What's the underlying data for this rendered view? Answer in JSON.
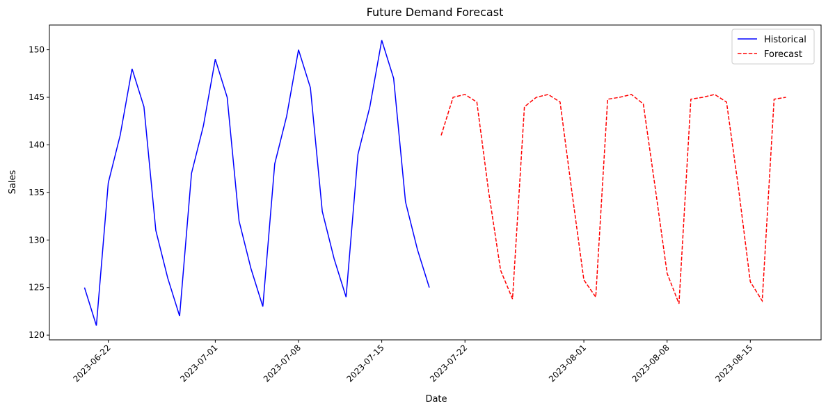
{
  "chart_data": {
    "type": "line",
    "title": "Future Demand Forecast",
    "x_label": "Date",
    "y_label": "Sales",
    "series": [
      {
        "name": "Historical",
        "color": "#0000ff",
        "linestyle": "solid",
        "x": [
          "2023-06-20",
          "2023-06-21",
          "2023-06-22",
          "2023-06-23",
          "2023-06-24",
          "2023-06-25",
          "2023-06-26",
          "2023-06-27",
          "2023-06-28",
          "2023-06-29",
          "2023-06-30",
          "2023-07-01",
          "2023-07-02",
          "2023-07-03",
          "2023-07-04",
          "2023-07-05",
          "2023-07-06",
          "2023-07-07",
          "2023-07-08",
          "2023-07-09",
          "2023-07-10",
          "2023-07-11",
          "2023-07-12",
          "2023-07-13",
          "2023-07-14",
          "2023-07-15",
          "2023-07-16",
          "2023-07-17",
          "2023-07-18",
          "2023-07-19"
        ],
        "values": [
          125,
          121,
          136,
          141,
          148,
          144,
          131,
          126,
          122,
          137,
          142,
          149,
          145,
          132,
          127,
          123,
          138,
          143,
          150,
          146,
          133,
          128,
          124,
          139,
          144,
          151,
          147,
          134,
          129,
          125
        ]
      },
      {
        "name": "Forecast",
        "color": "#ff0000",
        "linestyle": "dashed",
        "x": [
          "2023-07-20",
          "2023-07-21",
          "2023-07-22",
          "2023-07-23",
          "2023-07-24",
          "2023-07-25",
          "2023-07-26",
          "2023-07-27",
          "2023-07-28",
          "2023-07-29",
          "2023-07-30",
          "2023-07-31",
          "2023-08-01",
          "2023-08-02",
          "2023-08-03",
          "2023-08-04",
          "2023-08-05",
          "2023-08-06",
          "2023-08-07",
          "2023-08-08",
          "2023-08-09",
          "2023-08-10",
          "2023-08-11",
          "2023-08-12",
          "2023-08-13",
          "2023-08-14",
          "2023-08-15",
          "2023-08-16",
          "2023-08-17",
          "2023-08-18"
        ],
        "values": [
          141,
          145,
          145.3,
          144.5,
          135,
          126.8,
          123.8,
          144,
          145,
          145.3,
          144.5,
          135,
          125.8,
          124,
          144.8,
          145,
          145.3,
          144.3,
          135.5,
          126.5,
          123.3,
          144.8,
          145,
          145.3,
          144.5,
          135.5,
          125.6,
          123.6,
          144.8,
          145
        ]
      }
    ],
    "xlim": [
      "2023-06-17T01:10Z",
      "2023-08-20T22:50Z"
    ],
    "xticks": [
      "2023-06-22",
      "2023-07-01",
      "2023-07-08",
      "2023-07-15",
      "2023-07-22",
      "2023-08-01",
      "2023-08-08",
      "2023-08-15"
    ],
    "ylim": [
      119.5,
      152.6
    ],
    "yticks": [
      120,
      125,
      130,
      135,
      140,
      145,
      150
    ],
    "legend": "upper right",
    "grid": false
  }
}
